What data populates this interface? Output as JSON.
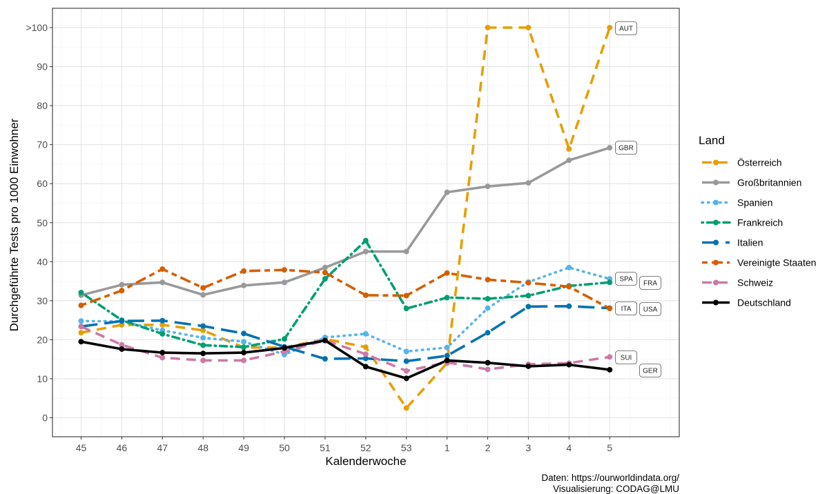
{
  "chart_data": {
    "type": "line",
    "xlabel": "Kalenderwoche",
    "ylabel": "Durchgeführte Tests pro 1000 Einwohner",
    "categories": [
      "45",
      "46",
      "47",
      "48",
      "49",
      "50",
      "51",
      "52",
      "53",
      "1",
      "2",
      "3",
      "4",
      "5"
    ],
    "ylim": [
      -5,
      105
    ],
    "y_ticks": [
      {
        "value": 0,
        "label": "0"
      },
      {
        "value": 10,
        "label": "10"
      },
      {
        "value": 20,
        "label": "20"
      },
      {
        "value": 30,
        "label": "30"
      },
      {
        "value": 40,
        "label": "40"
      },
      {
        "value": 50,
        "label": "50"
      },
      {
        "value": 60,
        "label": "60"
      },
      {
        "value": 70,
        "label": "70"
      },
      {
        "value": 80,
        "label": "80"
      },
      {
        "value": 90,
        "label": "90"
      },
      {
        "value": 100,
        "label": ">100"
      }
    ],
    "grid": true,
    "legend_title": "Land",
    "legend_position": "right",
    "series": [
      {
        "name": "Österreich",
        "code": "AUT",
        "color": "#E69F00",
        "dash": "dashed",
        "values": [
          21.8,
          23.8,
          23.8,
          22.4,
          18.0,
          18.0,
          20.2,
          18.1,
          2.5,
          14.0,
          100,
          100,
          68.9,
          100
        ]
      },
      {
        "name": "Großbritannien",
        "code": "GBR",
        "color": "#999999",
        "dash": "solid",
        "values": [
          31.4,
          34.1,
          34.7,
          31.5,
          33.9,
          34.7,
          38.5,
          42.6,
          42.6,
          57.8,
          59.3,
          60.2,
          66.0,
          69.2
        ]
      },
      {
        "name": "Spanien",
        "code": "SPA",
        "color": "#56B4E9",
        "dash": "dotted",
        "values": [
          24.8,
          24.7,
          22.4,
          20.5,
          19.5,
          16.2,
          20.6,
          21.5,
          17.0,
          18.0,
          28.1,
          34.8,
          38.5,
          35.6
        ]
      },
      {
        "name": "Frankreich",
        "code": "FRA",
        "color": "#009E73",
        "dash": "dotdash",
        "values": [
          32.1,
          25.0,
          21.5,
          18.6,
          18.1,
          20.2,
          35.6,
          45.4,
          28.0,
          30.8,
          30.5,
          31.3,
          33.8,
          34.7
        ]
      },
      {
        "name": "Italien",
        "code": "ITA",
        "color": "#0072B2",
        "dash": "longdash",
        "values": [
          23.4,
          24.8,
          24.9,
          23.5,
          21.6,
          18.2,
          15.1,
          15.2,
          14.5,
          15.9,
          21.8,
          28.5,
          28.6,
          28.1
        ]
      },
      {
        "name": "Vereinigte Staaten",
        "code": "USA",
        "color": "#D55E00",
        "dash": "twodash",
        "values": [
          28.8,
          32.6,
          38.1,
          33.3,
          37.6,
          37.9,
          37.2,
          31.4,
          31.3,
          37.1,
          35.4,
          34.6,
          33.6,
          28.0
        ]
      },
      {
        "name": "Schweiz",
        "code": "SUI",
        "color": "#CC79A7",
        "dash": "dashed",
        "values": [
          23.4,
          18.7,
          15.4,
          14.7,
          14.7,
          17.0,
          19.8,
          16.3,
          12.0,
          14.2,
          12.4,
          13.7,
          14.0,
          15.6
        ]
      },
      {
        "name": "Deutschland",
        "code": "GER",
        "color": "#000000",
        "dash": "solid",
        "values": [
          19.5,
          17.6,
          16.7,
          16.5,
          16.7,
          17.9,
          19.8,
          13.1,
          10.1,
          14.7,
          14.1,
          13.2,
          13.6,
          12.3
        ]
      }
    ]
  },
  "caption": {
    "line1": "Daten: https://ourworldindata.org/",
    "line2": "Visualisierung: CODAG@LMU"
  }
}
